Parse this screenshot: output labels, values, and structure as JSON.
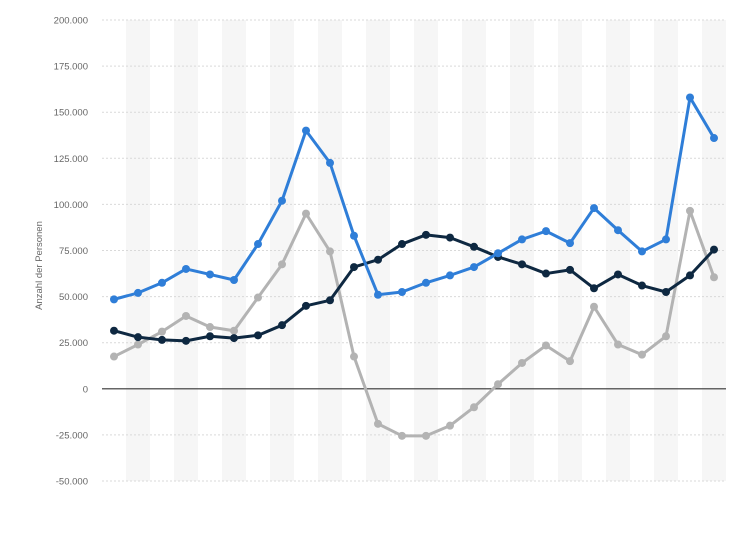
{
  "chart_data": {
    "type": "line",
    "title": "",
    "xlabel": "",
    "ylabel": "Anzahl der Personen",
    "ylim": [
      -50000,
      200000
    ],
    "yticks": [
      200000,
      175000,
      150000,
      125000,
      100000,
      75000,
      50000,
      25000,
      0,
      -25000,
      -50000
    ],
    "ytick_labels": [
      "200.000",
      "175.000",
      "150.000",
      "125.000",
      "100.000",
      "75.000",
      "50.000",
      "25.000",
      "0",
      "-25.000",
      "-50.000"
    ],
    "grid": true,
    "legend": "none",
    "point_count": 26,
    "series": [
      {
        "color": "#2f7ed8",
        "values": [
          48500,
          52000,
          57500,
          65000,
          62000,
          59000,
          78500,
          102000,
          140000,
          122500,
          83000,
          51000,
          52500,
          57500,
          61500,
          66000,
          73500,
          81000,
          85500,
          79000,
          98000,
          86000,
          74500,
          81000,
          158000,
          136000
        ]
      },
      {
        "color": "#0e2841",
        "values": [
          31500,
          28000,
          26500,
          26000,
          28500,
          27500,
          29000,
          34500,
          45000,
          48000,
          66000,
          70000,
          78500,
          83500,
          82000,
          77000,
          71500,
          67500,
          62500,
          64500,
          54500,
          62000,
          56000,
          52500,
          61500,
          75500
        ]
      },
      {
        "color": "#b3b3b3",
        "values": [
          17500,
          24000,
          31000,
          39500,
          33500,
          31500,
          49500,
          67500,
          95000,
          74500,
          17500,
          -19000,
          -25500,
          -25500,
          -20000,
          -10000,
          2500,
          14000,
          23500,
          15000,
          44500,
          24000,
          18500,
          28500,
          96500,
          60500
        ]
      }
    ]
  }
}
